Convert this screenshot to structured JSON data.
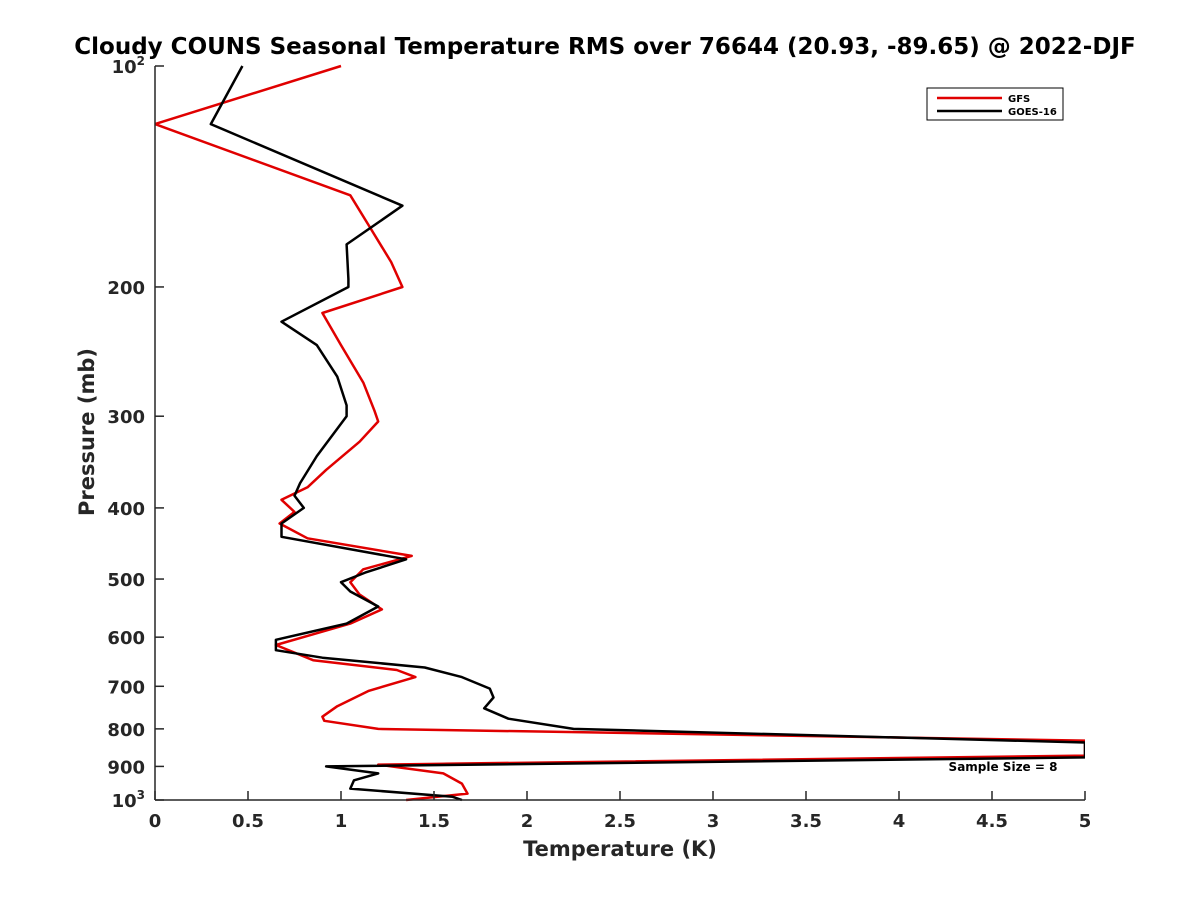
{
  "chart_data": {
    "type": "line",
    "title": "Cloudy COUNS Seasonal Temperature RMS over 76644 (20.93, -89.65) @ 2022-DJF",
    "xlabel": "Temperature (K)",
    "ylabel": "Pressure (mb)",
    "xlim": [
      0,
      5
    ],
    "ylim": [
      100,
      1000
    ],
    "y_scale": "log",
    "y_reversed": true,
    "grid": false,
    "legend_position": "top-right",
    "x_ticks": [
      {
        "value": 0,
        "label": "0"
      },
      {
        "value": 0.5,
        "label": "0.5"
      },
      {
        "value": 1,
        "label": "1"
      },
      {
        "value": 1.5,
        "label": "1.5"
      },
      {
        "value": 2,
        "label": "2"
      },
      {
        "value": 2.5,
        "label": "2.5"
      },
      {
        "value": 3,
        "label": "3"
      },
      {
        "value": 3.5,
        "label": "3.5"
      },
      {
        "value": 4,
        "label": "4"
      },
      {
        "value": 4.5,
        "label": "4.5"
      },
      {
        "value": 5,
        "label": "5"
      }
    ],
    "y_ticks": [
      {
        "value": 100,
        "label": "10",
        "exp": "2"
      },
      {
        "value": 200,
        "label": "200"
      },
      {
        "value": 300,
        "label": "300"
      },
      {
        "value": 400,
        "label": "400"
      },
      {
        "value": 500,
        "label": "500"
      },
      {
        "value": 600,
        "label": "600"
      },
      {
        "value": 700,
        "label": "700"
      },
      {
        "value": 800,
        "label": "800"
      },
      {
        "value": 900,
        "label": "900"
      },
      {
        "value": 1000,
        "label": "10",
        "exp": "3"
      }
    ],
    "annotation": "Sample Size = 8",
    "series": [
      {
        "name": "GFS",
        "color": "#e00000",
        "x": [
          1.0,
          0.0,
          1.05,
          1.15,
          1.27,
          1.33,
          0.9,
          1.0,
          1.12,
          1.18,
          1.2,
          1.1,
          0.92,
          0.82,
          0.68,
          0.75,
          0.67,
          0.82,
          1.38,
          1.12,
          1.05,
          1.1,
          1.22,
          1.05,
          0.65,
          0.85,
          1.3,
          1.4,
          1.15,
          0.98,
          0.9,
          0.91,
          1.2,
          5.0,
          5.0,
          1.2,
          1.55,
          1.65,
          1.68,
          1.35
        ],
        "y": [
          100,
          120,
          150,
          165,
          185,
          200,
          217,
          240,
          270,
          295,
          305,
          325,
          355,
          375,
          390,
          405,
          420,
          440,
          465,
          485,
          505,
          525,
          550,
          575,
          615,
          645,
          665,
          680,
          710,
          745,
          770,
          780,
          800,
          830,
          870,
          895,
          920,
          950,
          980,
          1000
        ]
      },
      {
        "name": "GOES-16",
        "color": "#000000",
        "x": [
          0.47,
          0.3,
          1.33,
          1.03,
          1.04,
          1.04,
          0.68,
          0.87,
          0.98,
          1.03,
          1.03,
          0.87,
          0.78,
          0.75,
          0.8,
          0.68,
          0.68,
          1.35,
          1.13,
          1.0,
          1.05,
          1.2,
          1.03,
          0.65,
          0.65,
          0.9,
          1.45,
          1.65,
          1.8,
          1.82,
          1.77,
          1.9,
          2.25,
          5.0,
          5.0,
          0.92,
          1.2,
          1.07,
          1.05,
          1.6,
          1.65
        ],
        "y": [
          100,
          120,
          155,
          175,
          195,
          200,
          223,
          240,
          265,
          290,
          300,
          340,
          370,
          385,
          400,
          420,
          438,
          470,
          490,
          505,
          520,
          545,
          575,
          605,
          625,
          640,
          660,
          680,
          705,
          725,
          750,
          775,
          800,
          835,
          875,
          900,
          920,
          940,
          965,
          990,
          1000
        ]
      }
    ]
  }
}
